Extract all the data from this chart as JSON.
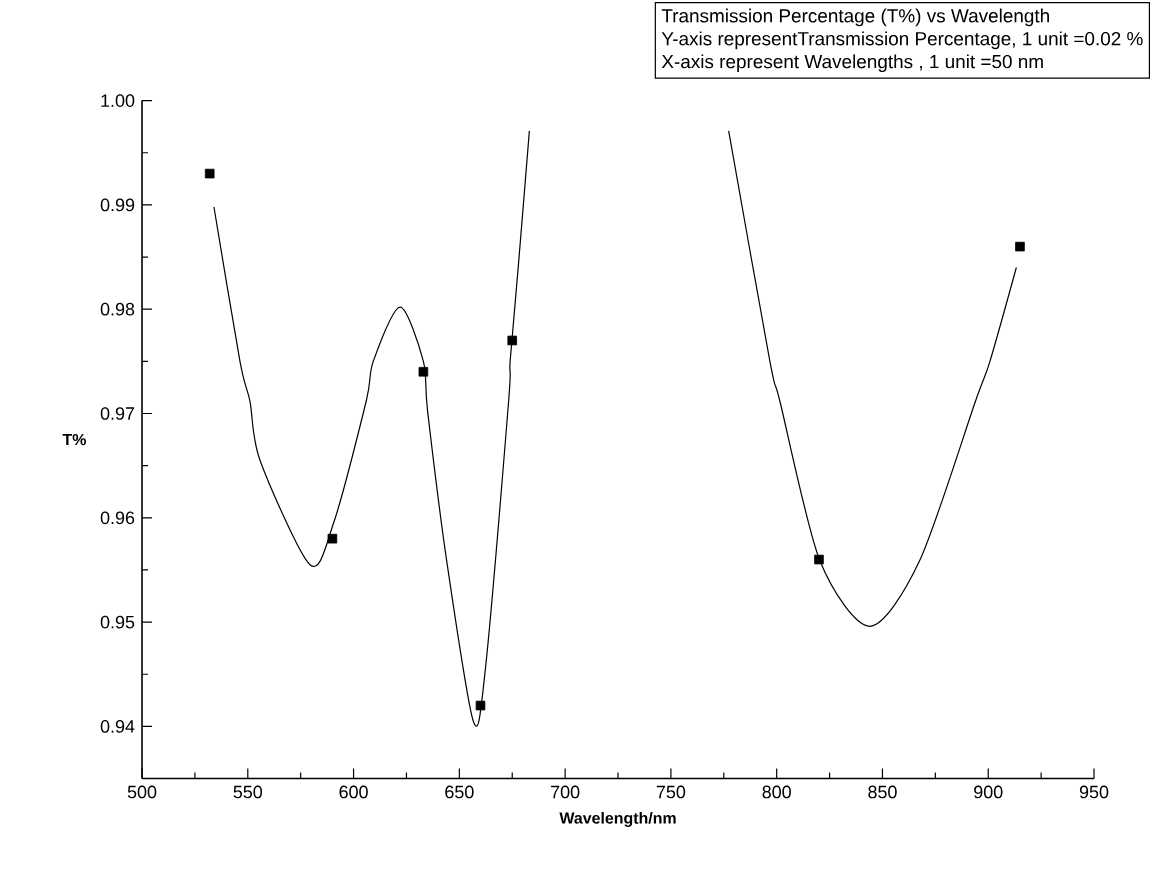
{
  "chart_data": {
    "type": "scatter",
    "xlabel": "Wavelength/nm",
    "ylabel": "T%",
    "annotations": [
      "Transmission Percentage (T%) vs Wavelength",
      "Y-axis representTransmission Percentage, 1 unit =0.02 %",
      "X-axis represent Wavelengths , 1 unit =50 nm"
    ],
    "xlim": [
      500,
      950
    ],
    "ylim": [
      0.935,
      1.0
    ],
    "xticks": [
      500,
      550,
      600,
      650,
      700,
      750,
      800,
      850,
      900,
      950
    ],
    "yticks": [
      0.94,
      0.95,
      0.96,
      0.97,
      0.98,
      0.99,
      {
        "value": 1,
        "label": "1.00"
      }
    ],
    "marker": "square",
    "series": [
      {
        "color": "#000000",
        "x": [
          532,
          590,
          633,
          660,
          675,
          820,
          915
        ],
        "values": [
          0.993,
          0.958,
          0.974,
          0.942,
          0.977,
          0.956,
          0.986
        ]
      },
      {
        "type": "line",
        "marker": "none",
        "color": "#000000",
        "x": [
          534,
          546.3,
          551,
          555.8,
          579.4,
          590.4,
          606,
          609.3,
          622,
          633,
          635,
          644,
          656.6,
          662.2,
          673.3,
          674,
          677.7,
          683.1
        ],
        "values": [
          0.9898,
          0.975,
          0.9712,
          0.9655,
          0.9555,
          0.9594,
          0.9712,
          0.975,
          0.9802,
          0.975,
          0.9702,
          0.9559,
          0.9405,
          0.9453,
          0.9712,
          0.975,
          0.9837,
          0.9971
        ]
      },
      {
        "type": "line",
        "marker": "none",
        "color": "#000000",
        "x": [
          777.3,
          796.8,
          801.5,
          820.4,
          844,
          867.6,
          894,
          900.8,
          913.3
        ],
        "values": [
          0.9971,
          0.975,
          0.9712,
          0.9559,
          0.9496,
          0.9559,
          0.9712,
          0.975,
          0.984
        ]
      }
    ]
  }
}
